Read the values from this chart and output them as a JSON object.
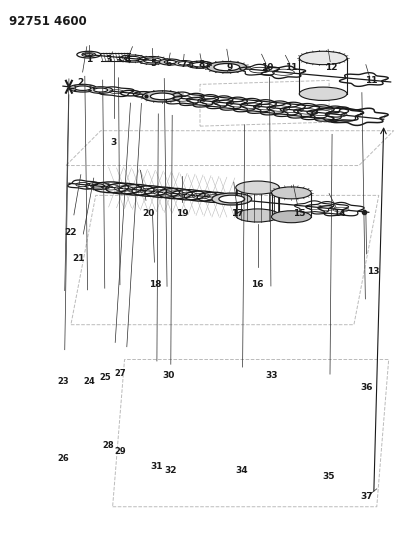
{
  "title_code": "92751 4600",
  "bg_color": "#ffffff",
  "line_color": "#2a2a2a",
  "dark_color": "#1a1a1a",
  "gray_color": "#888888",
  "light_gray": "#bbbbbb",
  "title_fontsize": 8.5,
  "label_fontsize": 6.5,
  "fig_width": 4.01,
  "fig_height": 5.33,
  "dpi": 100
}
